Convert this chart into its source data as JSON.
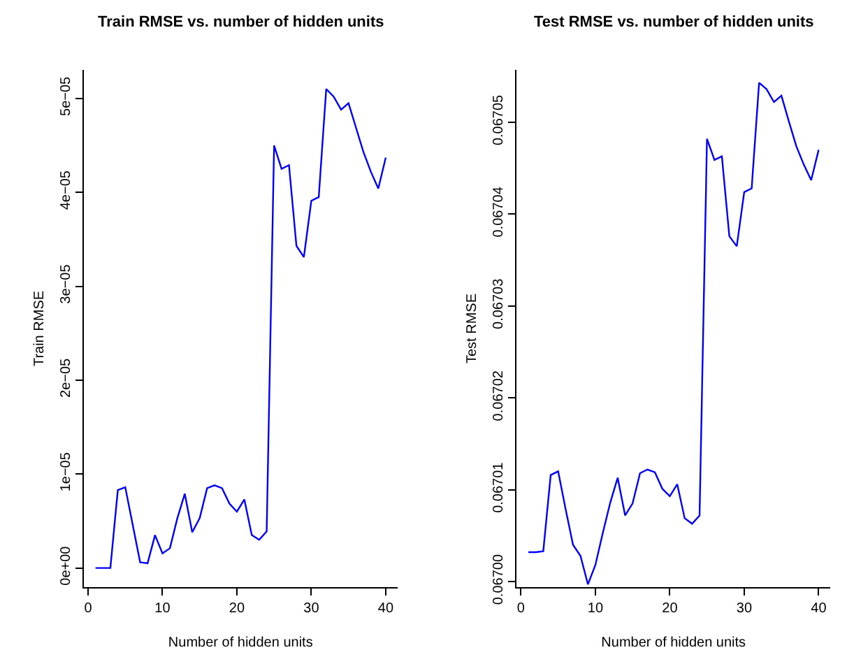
{
  "chart_data": [
    {
      "type": "line",
      "title": "Train RMSE vs. number of hidden units",
      "xlabel": "Number of hidden units",
      "ylabel": "Train RMSE",
      "x": [
        1,
        2,
        3,
        4,
        5,
        6,
        7,
        8,
        9,
        10,
        11,
        12,
        13,
        14,
        15,
        16,
        17,
        18,
        19,
        20,
        21,
        22,
        23,
        24,
        25,
        26,
        27,
        28,
        29,
        30,
        31,
        32,
        33,
        34,
        35,
        36,
        37,
        38,
        39,
        40
      ],
      "series": [
        {
          "color": "#0000ff",
          "values": [
            0,
            0,
            0,
            8.3e-06,
            8.6e-06,
            4.6e-06,
            6e-07,
            5e-07,
            3.5e-06,
            1.55e-06,
            2.1e-06,
            5.3e-06,
            7.9e-06,
            3.8e-06,
            5.3e-06,
            8.5e-06,
            8.8e-06,
            8.5e-06,
            6.85e-06,
            6e-06,
            7.3e-06,
            3.5e-06,
            3e-06,
            3.9e-06,
            4.5e-05,
            4.25e-05,
            4.29e-05,
            3.43e-05,
            3.31e-05,
            3.91e-05,
            3.95e-05,
            5.1e-05,
            5.02e-05,
            4.88e-05,
            4.95e-05,
            4.69e-05,
            4.43e-05,
            4.22e-05,
            4.04e-05,
            4.37e-05
          ]
        }
      ],
      "xlim": [
        -0.56,
        41.56
      ],
      "xticks": [
        0,
        10,
        20,
        30,
        40
      ],
      "ylim": [
        -2.04e-06,
        5.304e-05
      ],
      "yticks": [
        {
          "value": 0,
          "label": "0e+00"
        },
        {
          "value": 1e-05,
          "label": "1e−05"
        },
        {
          "value": 2e-05,
          "label": "2e−05"
        },
        {
          "value": 3e-05,
          "label": "3e−05"
        },
        {
          "value": 4e-05,
          "label": "4e−05"
        },
        {
          "value": 5e-05,
          "label": "5e−05"
        }
      ],
      "marker": "none",
      "line_style": "solid"
    },
    {
      "type": "line",
      "title": "Test RMSE vs. number of hidden units",
      "xlabel": "Number of hidden units",
      "ylabel": "Test RMSE",
      "x": [
        1,
        2,
        3,
        4,
        5,
        6,
        7,
        8,
        9,
        10,
        11,
        12,
        13,
        14,
        15,
        16,
        17,
        18,
        19,
        20,
        21,
        22,
        23,
        24,
        25,
        26,
        27,
        28,
        29,
        30,
        31,
        32,
        33,
        34,
        35,
        36,
        37,
        38,
        39,
        40
      ],
      "series": [
        {
          "color": "#0000ff",
          "values": [
            0.0670032,
            0.0670032,
            0.0670033,
            0.0670116,
            0.067012,
            0.0670079,
            0.067004,
            0.0670028,
            0.0669997,
            0.0670018,
            0.0670053,
            0.0670086,
            0.0670113,
            0.0670072,
            0.0670085,
            0.0670118,
            0.0670122,
            0.0670119,
            0.0670101,
            0.0670093,
            0.0670106,
            0.0670069,
            0.0670063,
            0.0670072,
            0.0670482,
            0.0670459,
            0.0670463,
            0.0670376,
            0.0670365,
            0.0670424,
            0.0670428,
            0.0670543,
            0.0670536,
            0.0670522,
            0.0670529,
            0.0670501,
            0.0670474,
            0.0670454,
            0.0670437,
            0.067047
          ]
        }
      ],
      "xlim": [
        -0.56,
        41.56
      ],
      "xticks": [
        0,
        10,
        20,
        30,
        40
      ],
      "ylim": [
        0.0669994,
        0.0670557
      ],
      "yticks": [
        {
          "value": 0.067,
          "label": "0.06700"
        },
        0.06701,
        0.06702,
        0.06703,
        0.06704,
        0.06705
      ],
      "marker": "none",
      "line_style": "solid"
    }
  ]
}
